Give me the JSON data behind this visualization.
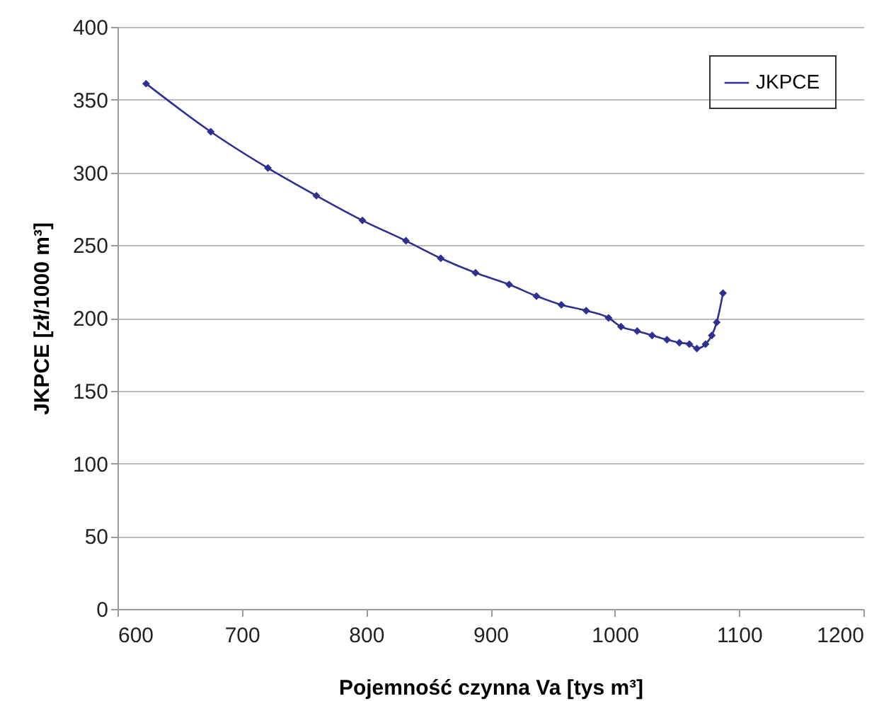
{
  "chart_data": {
    "type": "line",
    "xlabel": "Pojemność czynna Va  [tys m³]",
    "ylabel": "JKPCE [zł/1000 m³]",
    "x": [
      623,
      675,
      721,
      760,
      797,
      832,
      860,
      888,
      915,
      937,
      957,
      977,
      995,
      1005,
      1018,
      1030,
      1042,
      1052,
      1060,
      1066,
      1073,
      1078,
      1082,
      1087
    ],
    "series": [
      {
        "name": "JKPCE",
        "color": "#2e3192",
        "values": [
          361,
          328,
          303,
          284,
          267,
          253,
          241,
          231,
          223,
          215,
          209,
          205,
          200,
          194,
          191,
          188,
          185,
          183,
          182,
          179,
          182,
          188,
          197,
          217
        ]
      }
    ],
    "xlim": [
      600,
      1200
    ],
    "xticks": [
      600,
      700,
      800,
      900,
      1000,
      1100,
      1200
    ],
    "ylim": [
      0,
      400
    ],
    "yticks": [
      0,
      50,
      100,
      150,
      200,
      250,
      300,
      350,
      400
    ],
    "grid": "y",
    "legend": "top right",
    "marker": "diamond",
    "line_style": "solid"
  }
}
